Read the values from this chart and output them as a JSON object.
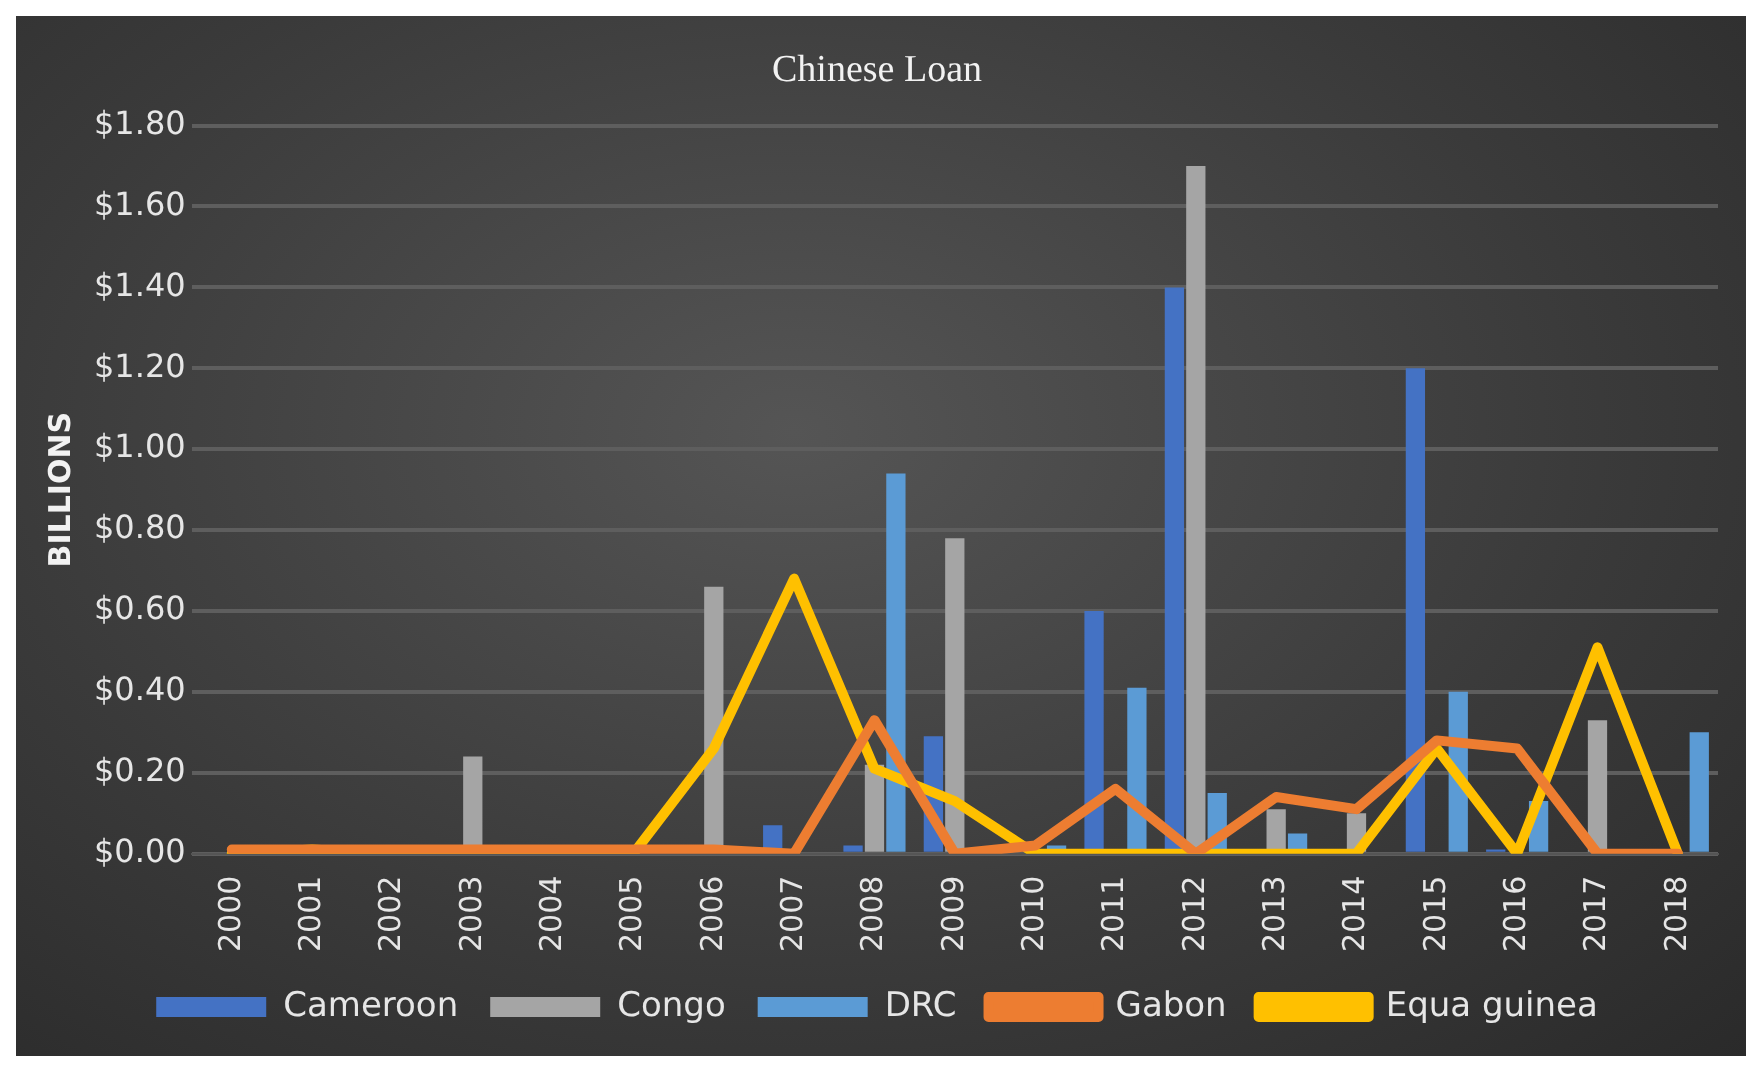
{
  "chart_data": {
    "type": "bar",
    "title": "Chinese Loan",
    "ylabel": "BILLIONS",
    "categories": [
      "2000",
      "2001",
      "2002",
      "2003",
      "2004",
      "2005",
      "2006",
      "2007",
      "2008",
      "2009",
      "2010",
      "2011",
      "2012",
      "2013",
      "2014",
      "2015",
      "2016",
      "2017",
      "2018"
    ],
    "series": [
      {
        "name": "Cameroon",
        "color": "#4472c4",
        "values": [
          0,
          0,
          0,
          0,
          0,
          0,
          0,
          0.07,
          0.02,
          0.29,
          0,
          0.6,
          1.4,
          0,
          0,
          1.2,
          0.01,
          0,
          0
        ]
      },
      {
        "name": "Congo",
        "color": "#a5a5a5",
        "values": [
          null,
          0,
          0,
          0.24,
          0,
          0,
          0.66,
          null,
          0.22,
          0.78,
          0,
          0,
          1.7,
          0.11,
          0.1,
          0,
          0,
          0.33,
          0
        ]
      },
      {
        "name": "DRC",
        "color": "#5b9bd5",
        "values": [
          0,
          0,
          0,
          0,
          0,
          0,
          0,
          0,
          0.94,
          0,
          0.02,
          0.41,
          0.15,
          0.05,
          0,
          0.4,
          0.13,
          0,
          0.3
        ]
      },
      {
        "name": "Gabon",
        "type": "line",
        "color": "#ed7d31",
        "values": [
          0.01,
          0.01,
          0.01,
          0.01,
          0.01,
          0.01,
          0.01,
          0,
          0.33,
          0,
          0.02,
          0.16,
          0,
          0.14,
          0.11,
          0.28,
          0.26,
          0,
          0
        ]
      },
      {
        "name": "Equa guinea",
        "type": "line",
        "color": "#ffc000",
        "values": [
          0,
          0.01,
          0,
          0,
          0,
          0,
          0.26,
          0.68,
          0.21,
          0.13,
          0,
          0,
          0,
          0,
          0,
          0.26,
          0,
          0.51,
          0
        ]
      }
    ],
    "ylim": [
      0,
      1.8
    ],
    "yticks": [
      {
        "value": 0,
        "label": "$0.00"
      },
      {
        "value": 0.2,
        "label": "$0.20"
      },
      {
        "value": 0.4,
        "label": "$0.40"
      },
      {
        "value": 0.6,
        "label": "$0.60"
      },
      {
        "value": 0.8,
        "label": "$0.80"
      },
      {
        "value": 1,
        "label": "$1.00"
      },
      {
        "value": 1.2,
        "label": "$1.20"
      },
      {
        "value": 1.4,
        "label": "$1.40"
      },
      {
        "value": 1.6,
        "label": "$1.60"
      },
      {
        "value": 1.8,
        "label": "$1.80"
      }
    ],
    "grid": "y",
    "legend": "bottom"
  }
}
